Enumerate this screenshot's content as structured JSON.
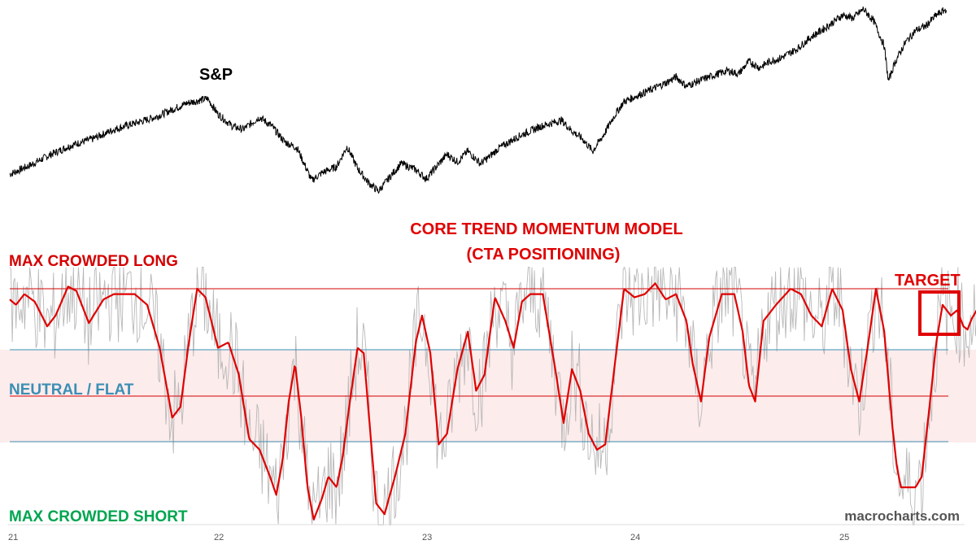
{
  "chart_data": {
    "type": "line",
    "title": "CORE TREND MOMENTUM MODEL",
    "subtitle": "(CTA POSITIONING)",
    "upper_panel": {
      "label": "S&P",
      "series": [
        {
          "color": "#000000",
          "points": [
            [
              21.0,
              0.23
            ],
            [
              21.1,
              0.29
            ],
            [
              21.2,
              0.36
            ],
            [
              21.3,
              0.42
            ],
            [
              21.4,
              0.46
            ],
            [
              21.5,
              0.52
            ],
            [
              21.6,
              0.56
            ],
            [
              21.7,
              0.6
            ],
            [
              21.8,
              0.66
            ],
            [
              21.85,
              0.69
            ],
            [
              21.95,
              0.72
            ],
            [
              22.0,
              0.62
            ],
            [
              22.07,
              0.54
            ],
            [
              22.12,
              0.52
            ],
            [
              22.2,
              0.6
            ],
            [
              22.26,
              0.54
            ],
            [
              22.32,
              0.44
            ],
            [
              22.38,
              0.4
            ],
            [
              22.45,
              0.19
            ],
            [
              22.5,
              0.24
            ],
            [
              22.57,
              0.28
            ],
            [
              22.62,
              0.41
            ],
            [
              22.67,
              0.27
            ],
            [
              22.72,
              0.18
            ],
            [
              22.77,
              0.12
            ],
            [
              22.83,
              0.22
            ],
            [
              22.88,
              0.3
            ],
            [
              22.95,
              0.26
            ],
            [
              23.0,
              0.2
            ],
            [
              23.05,
              0.28
            ],
            [
              23.1,
              0.36
            ],
            [
              23.15,
              0.31
            ],
            [
              23.2,
              0.38
            ],
            [
              23.26,
              0.3
            ],
            [
              23.3,
              0.34
            ],
            [
              23.35,
              0.4
            ],
            [
              23.45,
              0.48
            ],
            [
              23.55,
              0.54
            ],
            [
              23.65,
              0.58
            ],
            [
              23.7,
              0.51
            ],
            [
              23.75,
              0.46
            ],
            [
              23.8,
              0.38
            ],
            [
              23.85,
              0.48
            ],
            [
              23.9,
              0.6
            ],
            [
              23.95,
              0.7
            ],
            [
              24.05,
              0.76
            ],
            [
              24.15,
              0.82
            ],
            [
              24.2,
              0.86
            ],
            [
              24.25,
              0.8
            ],
            [
              24.32,
              0.84
            ],
            [
              24.4,
              0.88
            ],
            [
              24.45,
              0.9
            ],
            [
              24.5,
              0.88
            ],
            [
              24.55,
              0.96
            ],
            [
              24.6,
              0.92
            ],
            [
              24.65,
              0.96
            ],
            [
              24.7,
              0.98
            ],
            [
              24.78,
              1.04
            ],
            [
              24.85,
              1.12
            ],
            [
              24.92,
              1.18
            ],
            [
              25.0,
              1.26
            ],
            [
              25.05,
              1.24
            ],
            [
              25.1,
              1.3
            ],
            [
              25.15,
              1.22
            ],
            [
              25.2,
              1.06
            ],
            [
              25.22,
              0.83
            ],
            [
              25.25,
              0.95
            ],
            [
              25.3,
              1.08
            ],
            [
              25.35,
              1.16
            ],
            [
              25.4,
              1.19
            ],
            [
              25.45,
              1.26
            ],
            [
              25.5,
              1.3
            ]
          ]
        }
      ]
    },
    "lower_panel": {
      "ylim": [
        -1.25,
        1.25
      ],
      "levels": [
        {
          "name": "MAX CROWDED LONG",
          "value": 1.0,
          "color": "#d40000"
        },
        {
          "name": "",
          "value": 0.5,
          "color": "#3a8fb5"
        },
        {
          "name": "NEUTRAL / FLAT",
          "value": 0.0,
          "color": "#d40000"
        },
        {
          "name": "",
          "value": -0.5,
          "color": "#3a8fb5"
        },
        {
          "name": "MAX CROWDED SHORT",
          "value": -1.25,
          "color": "#00a550"
        }
      ],
      "neutral_band": [
        -0.5,
        0.5
      ],
      "series": [
        {
          "color": "#e00000",
          "points": [
            [
              21.0,
              0.9
            ],
            [
              21.03,
              0.85
            ],
            [
              21.07,
              0.95
            ],
            [
              21.12,
              0.88
            ],
            [
              21.18,
              0.65
            ],
            [
              21.22,
              0.75
            ],
            [
              21.28,
              1.02
            ],
            [
              21.32,
              0.98
            ],
            [
              21.38,
              0.68
            ],
            [
              21.45,
              0.9
            ],
            [
              21.5,
              0.95
            ],
            [
              21.6,
              0.95
            ],
            [
              21.66,
              0.85
            ],
            [
              21.72,
              0.45
            ],
            [
              21.78,
              -0.2
            ],
            [
              21.82,
              -0.1
            ],
            [
              21.86,
              0.5
            ],
            [
              21.9,
              1.0
            ],
            [
              21.94,
              0.92
            ],
            [
              22.0,
              0.45
            ],
            [
              22.05,
              0.5
            ],
            [
              22.1,
              0.2
            ],
            [
              22.15,
              -0.4
            ],
            [
              22.2,
              -0.5
            ],
            [
              22.25,
              -0.75
            ],
            [
              22.28,
              -0.92
            ],
            [
              22.31,
              -0.6
            ],
            [
              22.34,
              -0.05
            ],
            [
              22.37,
              0.3
            ],
            [
              22.4,
              -0.2
            ],
            [
              22.43,
              -0.85
            ],
            [
              22.46,
              -1.15
            ],
            [
              22.5,
              -0.95
            ],
            [
              22.53,
              -0.75
            ],
            [
              22.57,
              -0.85
            ],
            [
              22.6,
              -0.55
            ],
            [
              22.63,
              -0.1
            ],
            [
              22.67,
              0.45
            ],
            [
              22.7,
              0.4
            ],
            [
              22.73,
              -0.3
            ],
            [
              22.76,
              -1.0
            ],
            [
              22.8,
              -1.1
            ],
            [
              22.85,
              -0.75
            ],
            [
              22.9,
              -0.35
            ],
            [
              22.95,
              0.5
            ],
            [
              22.98,
              0.75
            ],
            [
              23.02,
              0.4
            ],
            [
              23.06,
              -0.45
            ],
            [
              23.1,
              -0.35
            ],
            [
              23.15,
              0.25
            ],
            [
              23.2,
              0.6
            ],
            [
              23.24,
              0.05
            ],
            [
              23.28,
              0.2
            ],
            [
              23.33,
              0.92
            ],
            [
              23.38,
              0.7
            ],
            [
              23.42,
              0.45
            ],
            [
              23.46,
              0.88
            ],
            [
              23.5,
              0.95
            ],
            [
              23.56,
              0.95
            ],
            [
              23.62,
              0.25
            ],
            [
              23.66,
              -0.25
            ],
            [
              23.7,
              0.25
            ],
            [
              23.74,
              0.05
            ],
            [
              23.78,
              -0.35
            ],
            [
              23.82,
              -0.5
            ],
            [
              23.86,
              -0.45
            ],
            [
              23.9,
              0.2
            ],
            [
              23.95,
              1.0
            ],
            [
              24.0,
              0.92
            ],
            [
              24.05,
              0.95
            ],
            [
              24.1,
              1.05
            ],
            [
              24.15,
              0.9
            ],
            [
              24.2,
              0.95
            ],
            [
              24.25,
              0.7
            ],
            [
              24.28,
              0.3
            ],
            [
              24.32,
              -0.05
            ],
            [
              24.36,
              0.55
            ],
            [
              24.42,
              0.95
            ],
            [
              24.48,
              0.95
            ],
            [
              24.52,
              0.6
            ],
            [
              24.55,
              0.1
            ],
            [
              24.58,
              -0.05
            ],
            [
              24.62,
              0.7
            ],
            [
              24.68,
              0.85
            ],
            [
              24.75,
              1.0
            ],
            [
              24.8,
              0.95
            ],
            [
              24.85,
              0.75
            ],
            [
              24.9,
              0.65
            ],
            [
              24.95,
              1.0
            ],
            [
              25.0,
              0.8
            ],
            [
              25.04,
              0.25
            ],
            [
              25.08,
              -0.05
            ],
            [
              25.12,
              0.45
            ],
            [
              25.16,
              1.0
            ],
            [
              25.2,
              0.6
            ],
            [
              25.24,
              -0.3
            ],
            [
              25.26,
              -0.65
            ],
            [
              25.28,
              -0.85
            ],
            [
              25.32,
              -0.85
            ],
            [
              25.35,
              -0.85
            ],
            [
              25.38,
              -0.75
            ],
            [
              25.42,
              -0.05
            ],
            [
              25.45,
              0.5
            ],
            [
              25.48,
              0.85
            ],
            [
              25.52,
              0.75
            ],
            [
              25.55,
              0.8
            ],
            [
              25.58,
              0.65
            ],
            [
              25.6,
              0.62
            ],
            [
              25.62,
              0.72
            ],
            [
              25.65,
              0.82
            ]
          ]
        }
      ]
    },
    "x_ticks": [
      "21",
      "22",
      "23",
      "24",
      "25"
    ],
    "annotations": {
      "target": "TARGET",
      "watermark": "macrocharts.com"
    }
  }
}
